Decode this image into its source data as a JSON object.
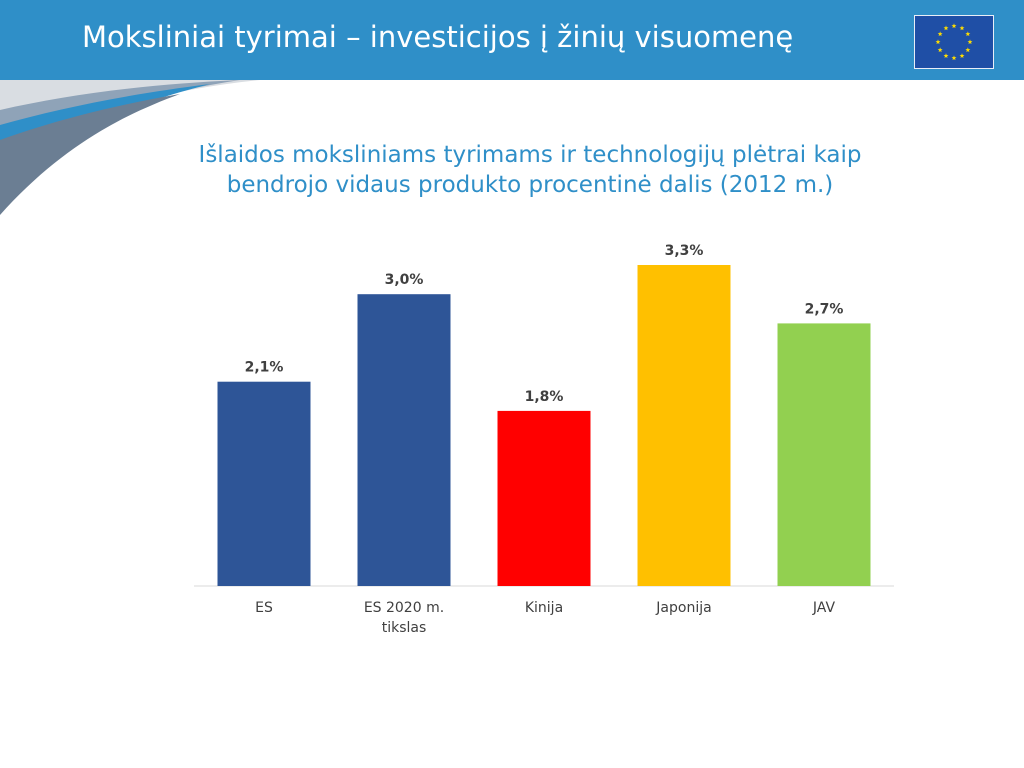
{
  "header": {
    "title": "Moksliniai tyrimai – investicijos į žinių visuomenę",
    "color": "#2f8fc8",
    "flag_icon": "eu-flag-icon"
  },
  "chart_data": {
    "type": "bar",
    "title_lines": [
      "Išlaidos moksliniams tyrimams ir technologijų plėtrai kaip",
      "bendrojo vidaus produkto procentinė dalis (2012 m.)"
    ],
    "categories": [
      [
        "ES"
      ],
      [
        "ES 2020 m.",
        "tikslas"
      ],
      [
        "Kinija"
      ],
      [
        "Japonija"
      ],
      [
        "JAV"
      ]
    ],
    "values": [
      2.1,
      3.0,
      1.8,
      3.3,
      2.7
    ],
    "value_labels": [
      "2,1%",
      "3,0%",
      "1,8%",
      "3,3%",
      "2,7%"
    ],
    "colors": [
      "#2e5597",
      "#2e5597",
      "#ff0000",
      "#ffc000",
      "#92d050"
    ],
    "ylim": [
      0,
      3.3
    ],
    "grid": false,
    "legend": "none"
  }
}
